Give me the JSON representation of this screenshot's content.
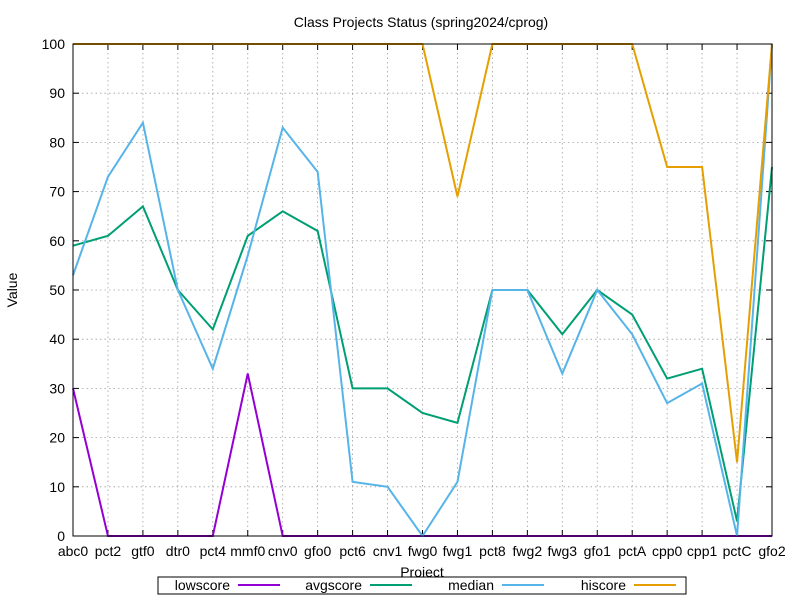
{
  "chart_data": {
    "type": "line",
    "title": "Class Projects Status (spring2024/cprog)",
    "xlabel": "Project",
    "ylabel": "Value",
    "ylim": [
      0,
      100
    ],
    "yticks": [
      0,
      10,
      20,
      30,
      40,
      50,
      60,
      70,
      80,
      90,
      100
    ],
    "grid": true,
    "legend_position": "bottom",
    "categories": [
      "abc0",
      "pct2",
      "gtf0",
      "dtr0",
      "pct4",
      "mmf0",
      "cnv0",
      "gfo0",
      "pct6",
      "cnv1",
      "fwg0",
      "fwg1",
      "pct8",
      "fwg2",
      "fwg3",
      "gfo1",
      "pctA",
      "cpp0",
      "cpp1",
      "pctC",
      "gfo2"
    ],
    "series": [
      {
        "name": "lowscore",
        "color": "#9400d3",
        "values": [
          30,
          0,
          0,
          0,
          0,
          33,
          0,
          0,
          0,
          0,
          0,
          0,
          0,
          0,
          0,
          0,
          0,
          0,
          0,
          0,
          0
        ]
      },
      {
        "name": "avgscore",
        "color": "#009e73",
        "values": [
          59,
          61,
          67,
          50,
          42,
          61,
          66,
          62,
          30,
          30,
          25,
          23,
          50,
          50,
          41,
          50,
          45,
          32,
          34,
          3,
          75
        ]
      },
      {
        "name": "median",
        "color": "#56b4e9",
        "values": [
          53,
          73,
          84,
          50,
          34,
          57,
          83,
          74,
          11,
          10,
          0,
          11,
          50,
          50,
          33,
          50,
          41,
          27,
          31,
          0,
          100
        ]
      },
      {
        "name": "hiscore",
        "color": "#e69f00",
        "values": [
          100,
          100,
          100,
          100,
          100,
          100,
          100,
          100,
          100,
          100,
          100,
          69,
          100,
          100,
          100,
          100,
          100,
          75,
          75,
          15,
          100
        ]
      }
    ]
  }
}
